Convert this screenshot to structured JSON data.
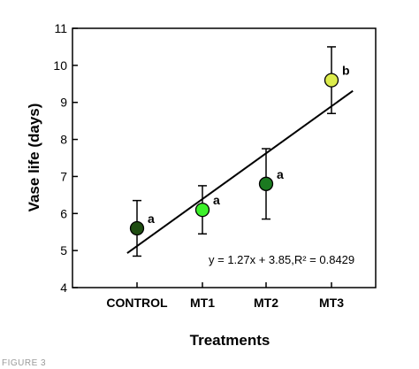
{
  "chart_data": {
    "type": "scatter",
    "categories": [
      "CONTROL",
      "MT1",
      "MT2",
      "MT3"
    ],
    "values": [
      5.6,
      6.1,
      6.8,
      9.6
    ],
    "error": [
      {
        "low": 4.85,
        "high": 6.35
      },
      {
        "low": 5.45,
        "high": 6.75
      },
      {
        "low": 5.85,
        "high": 7.75
      },
      {
        "low": 8.7,
        "high": 10.5
      }
    ],
    "significance": [
      "a",
      "a",
      "a",
      "b"
    ],
    "point_colors": [
      "#1f4d12",
      "#3cf02a",
      "#1b7a20",
      "#dcec4c"
    ],
    "trendline": {
      "slope": 1.27,
      "intercept": 3.85,
      "x_start": 0.85,
      "x_end": 4.3
    },
    "equation": "y = 1.27x + 3.85,R² = 0.8429",
    "xlabel": "Treatments",
    "ylabel": "Vase life (days)",
    "ylim": [
      4,
      11
    ],
    "yticks": [
      4,
      5,
      6,
      7,
      8,
      9,
      10,
      11
    ],
    "grid": false
  },
  "figure_caption": "FIGURE 3"
}
